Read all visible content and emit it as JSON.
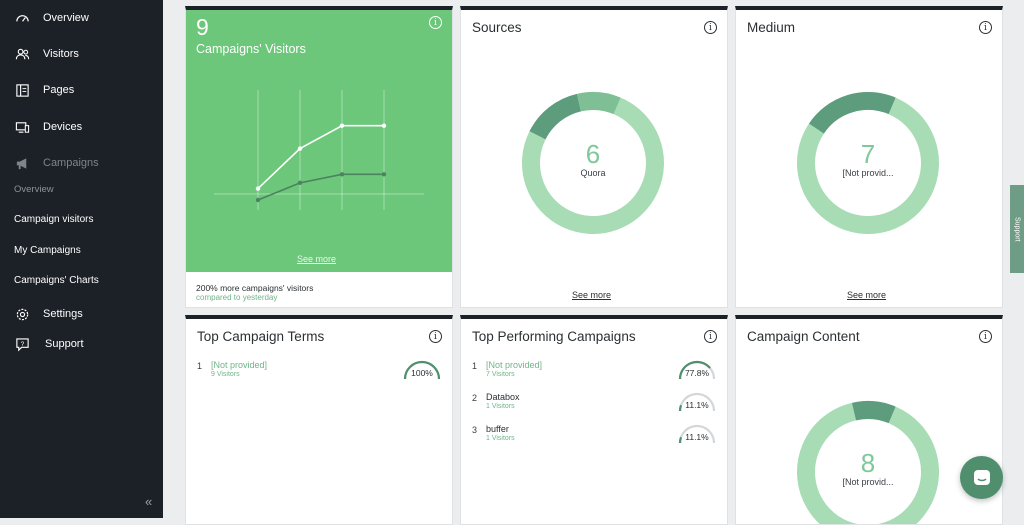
{
  "sidebar": {
    "items": [
      {
        "label": "Overview",
        "icon": "dashboard-gauge-icon"
      },
      {
        "label": "Visitors",
        "icon": "users-icon"
      },
      {
        "label": "Pages",
        "icon": "pages-icon"
      },
      {
        "label": "Devices",
        "icon": "devices-icon"
      },
      {
        "label": "Campaigns",
        "icon": "megaphone-icon"
      }
    ],
    "sub_items": [
      "Overview",
      "Campaign visitors",
      "My Campaigns",
      "Campaigns' Charts"
    ],
    "bottom_items": [
      {
        "label": "Settings",
        "icon": "gear-icon"
      },
      {
        "label": "Support",
        "icon": "help-icon"
      }
    ],
    "collapse_glyph": "«"
  },
  "colors": {
    "sidebar_bg": "#1c2127",
    "accent_green": "#6cc77b",
    "donut_light": "#a8dcb5",
    "donut_dark": "#5d9c7c",
    "donut_mid": "#7fbf96"
  },
  "visitors_card": {
    "value": "9",
    "title": "Campaigns' Visitors",
    "see_more": "See more",
    "footer_main": "200% more campaigns' visitors",
    "footer_sub": "compared to yesterday",
    "info": "i"
  },
  "chart_data": {
    "type": "line",
    "x": [
      "1",
      "2",
      "3",
      "4"
    ],
    "series": [
      {
        "values": [
          2,
          9,
          13,
          13
        ]
      },
      {
        "values": [
          0,
          3,
          4.5,
          4.5
        ]
      }
    ],
    "ylim": [
      0,
      14
    ],
    "title": "",
    "xlabel": "",
    "ylabel": "",
    "grid": true
  },
  "sources_card": {
    "title": "Sources",
    "center_value": "6",
    "center_label": "Quora",
    "see_more": "See more",
    "info": "i",
    "slices": [
      0.76,
      0.14,
      0.1
    ]
  },
  "medium_card": {
    "title": "Medium",
    "center_value": "7",
    "center_label": "[Not provid...",
    "see_more": "See more",
    "info": "i",
    "slices": [
      0.78,
      0.22
    ]
  },
  "terms_card": {
    "title": "Top Campaign Terms",
    "info": "i",
    "rows": [
      {
        "rank": "1",
        "name": "[Not provided]",
        "sub": "9 Visitors",
        "pct": "100%",
        "fraction": 1.0
      }
    ]
  },
  "performing_card": {
    "title": "Top Performing Campaigns",
    "info": "i",
    "rows": [
      {
        "rank": "1",
        "name": "[Not provided]",
        "sub": "7 Visitors",
        "pct": "77.8%",
        "fraction": 0.778,
        "muted": true
      },
      {
        "rank": "2",
        "name": "Databox",
        "sub": "1 Visitors",
        "pct": "11.1%",
        "fraction": 0.111,
        "muted": false
      },
      {
        "rank": "3",
        "name": "buffer",
        "sub": "1 Visitors",
        "pct": "11.1%",
        "fraction": 0.111,
        "muted": false
      }
    ]
  },
  "content_card": {
    "title": "Campaign Content",
    "info": "i",
    "center_value": "8",
    "center_label": "[Not provid..."
  },
  "support_tab": "Support"
}
